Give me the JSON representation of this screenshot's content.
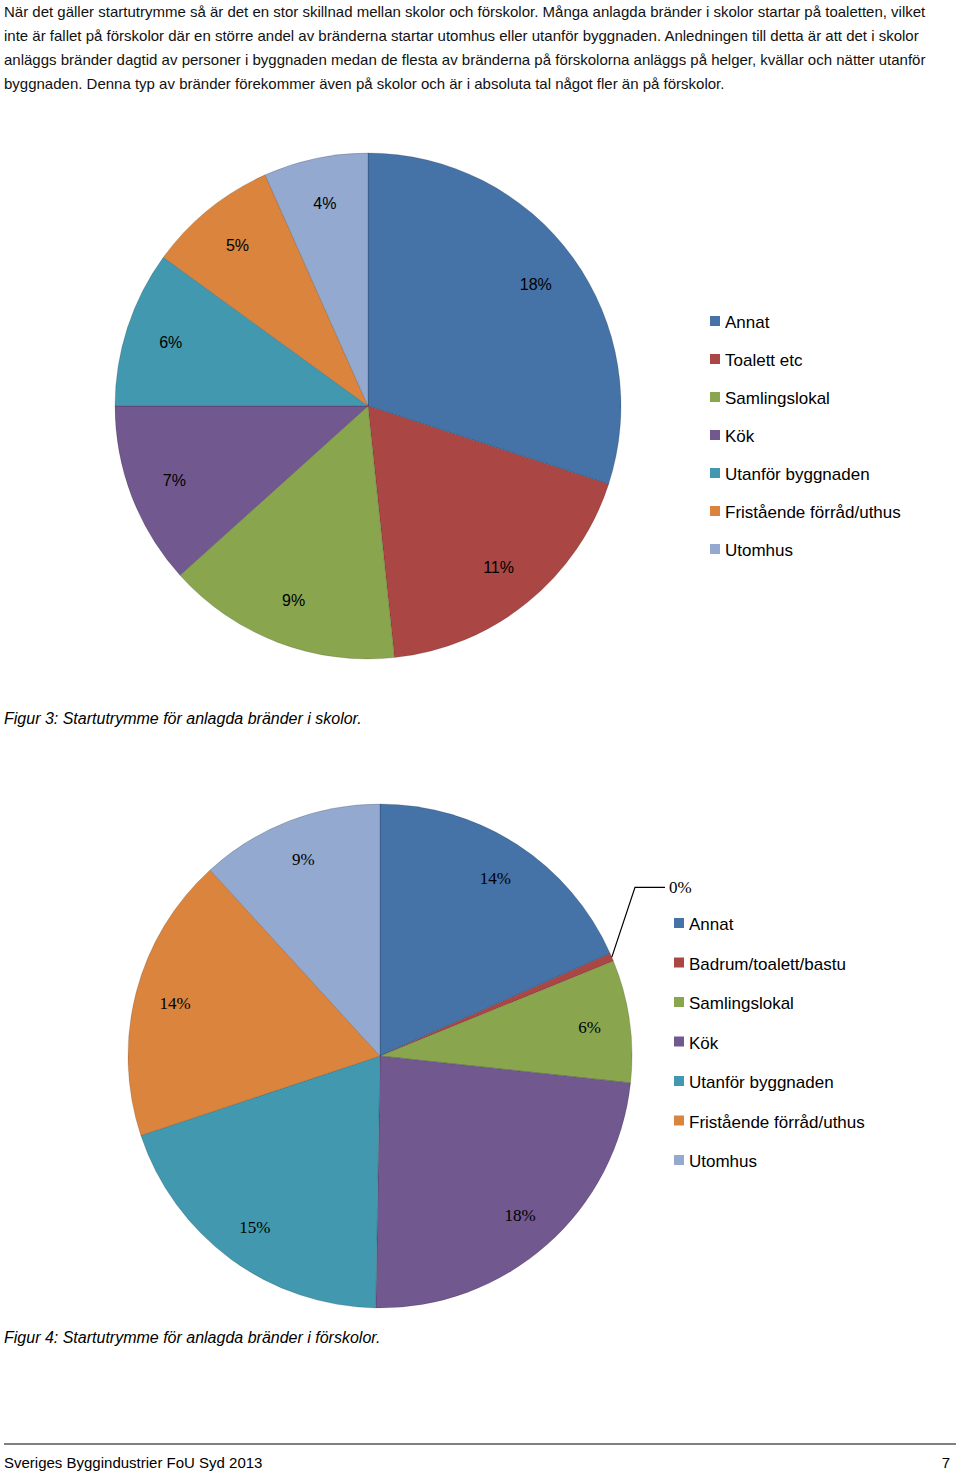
{
  "paragraph": "När det gäller startutrymme så är det en stor skillnad mellan skolor och förskolor. Många anlagda bränder i skolor startar på toaletten, vilket inte är fallet på förskolor där en större andel av bränderna startar utomhus eller utanför byggnaden. Anledningen till detta är att det i skolor anläggs bränder dagtid av personer i byggnaden medan de flesta av bränderna på förskolorna anläggs på helger, kvällar och nätter utanför byggnaden. Denna typ av bränder förekommer även på skolor och är i absoluta tal något fler än på förskolor.",
  "chart_data": [
    {
      "type": "pie",
      "title": "Figur 3: Startutrymme för anlagda bränder i skolor.",
      "categories": [
        "Annat",
        "Toalett etc",
        "Samlingslokal",
        "Kök",
        "Utanför byggnaden",
        "Fristående förråd/uthus",
        "Utomhus"
      ],
      "values": [
        18,
        11,
        9,
        7,
        6,
        5,
        4
      ],
      "value_labels": [
        "18%",
        "11%",
        "9%",
        "7%",
        "6%",
        "5%",
        "4%"
      ],
      "colors": [
        "#4572a7",
        "#aa4643",
        "#89a54e",
        "#71588f",
        "#4198af",
        "#db843d",
        "#93a9cf"
      ],
      "data_labels": true,
      "legend": "right"
    },
    {
      "type": "pie",
      "title": "Figur 4: Startutrymme för anlagda bränder i förskolor.",
      "categories": [
        "Annat",
        "Badrum/toalett/bastu",
        "Samlingslokal",
        "Kök",
        "Utanför byggnaden",
        "Fristående förråd/uthus",
        "Utomhus"
      ],
      "values": [
        14,
        0.4,
        6,
        18,
        15,
        14,
        9
      ],
      "value_labels": [
        "14%",
        "0%",
        "6%",
        "18%",
        "15%",
        "14%",
        "9%"
      ],
      "colors": [
        "#4572a7",
        "#aa4643",
        "#89a54e",
        "#71588f",
        "#4198af",
        "#db843d",
        "#93a9cf"
      ],
      "data_labels": true,
      "legend": "right"
    }
  ],
  "footer": {
    "left": "Sveriges Byggindustrier FoU Syd 2013",
    "page": "7"
  }
}
